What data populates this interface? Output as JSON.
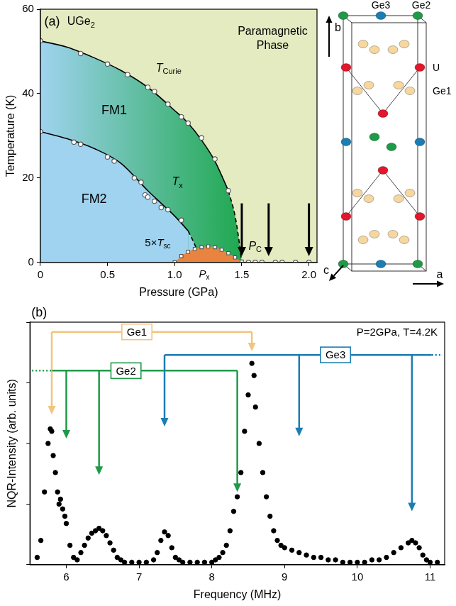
{
  "chart_data": [
    {
      "type": "line",
      "x_label": "Pressure (GPa)",
      "y_label": "Temperature (K)",
      "xlim": [
        0,
        2.06
      ],
      "xticks": [
        0,
        0.5,
        {
          "value": 1,
          "label": "1.0"
        },
        1.5,
        {
          "value": 2,
          "label": "2.0"
        }
      ],
      "ylim": [
        0,
        60
      ],
      "yticks": [
        0,
        20,
        40,
        60
      ],
      "grid": false,
      "series": [
        {
          "type": "area",
          "marker": "square",
          "color": "#e8843f",
          "x": [
            1.0,
            1.05,
            1.1,
            1.15,
            1.2,
            1.25,
            1.3,
            1.35,
            1.4,
            1.45,
            1.5
          ],
          "values": [
            0,
            1.5,
            2.5,
            3.2,
            3.6,
            3.8,
            3.6,
            3.0,
            2.2,
            1.2,
            0.2
          ]
        },
        {
          "type": "area",
          "line_style": "dashed",
          "marker": "none",
          "color": "#9fd3ef",
          "x": [
            1.1,
            1.15,
            1.2
          ],
          "values": [
            7.5,
            4.2,
            0
          ]
        },
        {
          "type": "area",
          "line_style": "solid",
          "marker": "none",
          "color": "#9fd3ef",
          "x": [
            0,
            0.2,
            0.4,
            0.6,
            0.8,
            0.9,
            1.0,
            1.1
          ],
          "values": [
            31,
            29.3,
            27,
            23.5,
            17,
            14,
            11,
            7.5
          ]
        },
        {
          "type": "scatter",
          "marker": "circle",
          "color": "#555555",
          "x": [
            0,
            0.25,
            0.3,
            0.5,
            0.55,
            0.7,
            0.75,
            0.78,
            0.8,
            0.85,
            0.9,
            0.95,
            1.05
          ],
          "values": [
            31,
            28.5,
            28,
            25,
            24,
            20,
            19,
            16,
            15.5,
            14.5,
            13,
            12.5,
            10
          ]
        },
        {
          "type": "area",
          "line_style": "dashed",
          "marker": "none",
          "color": "#1fa84f",
          "x": [
            1.4,
            1.45,
            1.48,
            1.5
          ],
          "values": [
            17,
            11,
            5,
            0
          ]
        },
        {
          "type": "area",
          "line_style": "solid",
          "marker": "none",
          "color": "#1fa84f",
          "x": [
            0,
            0.2,
            0.4,
            0.6,
            0.8,
            1.0,
            1.1,
            1.2,
            1.3,
            1.4
          ],
          "values": [
            52.5,
            51,
            48.5,
            45.5,
            41.5,
            36,
            33,
            29,
            24,
            17
          ]
        },
        {
          "type": "scatter",
          "marker": "circle",
          "color": "#555555",
          "x": [
            0,
            0.3,
            0.5,
            0.65,
            0.8,
            0.85,
            0.95,
            1.05,
            1.1,
            1.2,
            1.3,
            1.4
          ],
          "values": [
            52.5,
            49.5,
            47,
            44.5,
            41.5,
            40.5,
            37.5,
            34.5,
            33,
            29.5,
            24.5,
            17
          ]
        },
        {
          "type": "scatter",
          "marker": "circle",
          "color": "#555555",
          "x": [
            1.55,
            1.6,
            1.65,
            1.75,
            1.8,
            1.9,
            2.0
          ],
          "values": [
            0,
            0,
            0,
            0,
            0,
            0,
            0
          ]
        }
      ],
      "arrows": {
        "x": [
          1.5,
          1.7,
          2.0
        ],
        "from": 14,
        "to": 1.5
      },
      "annotations": [
        {
          "text": "(a)"
        },
        {
          "text": "UGe",
          "sub": "2"
        },
        {
          "text": "Paramagnetic Phase"
        },
        {
          "text": "FM1"
        },
        {
          "text": "FM2"
        },
        {
          "text": "T",
          "sub": "Curie"
        },
        {
          "text": "T",
          "sub": "x"
        },
        {
          "text": "5×T",
          "sub": "sc"
        },
        {
          "text": "P",
          "sub": "x"
        },
        {
          "text": "P",
          "sub": "C"
        }
      ]
    },
    {
      "type": "scatter",
      "x_label": "Frequency (MHz)",
      "y_label": "NQR-Intensity (arb. units)",
      "xlim": [
        5.5,
        11.2
      ],
      "xticks": [
        6,
        7,
        8,
        9,
        10,
        11
      ],
      "ylim": [
        0,
        1
      ],
      "yticks": [
        0,
        0.25,
        0.5,
        0.75,
        1
      ],
      "tick_labels": "x",
      "grid": false,
      "series": [
        {
          "type": "scatter",
          "marker": "circle",
          "color": "#000000",
          "x": [
            5.6,
            5.65,
            5.7,
            5.75,
            5.78,
            5.8,
            5.82,
            5.85,
            5.88,
            5.9,
            5.92,
            5.95,
            5.98,
            6.0,
            6.05,
            6.1,
            6.15,
            6.2,
            6.25,
            6.3,
            6.35,
            6.4,
            6.45,
            6.5,
            6.55,
            6.6,
            6.65,
            6.7,
            6.75,
            6.8,
            6.9,
            7.0,
            7.1,
            7.2,
            7.25,
            7.3,
            7.35,
            7.4,
            7.45,
            7.5,
            7.55,
            7.6,
            7.7,
            7.8,
            7.9,
            8.0,
            8.05,
            8.1,
            8.15,
            8.2,
            8.25,
            8.3,
            8.35,
            8.4,
            8.45,
            8.5,
            8.55,
            8.58,
            8.6,
            8.65,
            8.7,
            8.75,
            8.8,
            8.85,
            8.9,
            8.95,
            9.0,
            9.1,
            9.2,
            9.3,
            9.4,
            9.5,
            9.6,
            9.7,
            9.8,
            9.9,
            10.0,
            10.1,
            10.2,
            10.3,
            10.4,
            10.5,
            10.6,
            10.7,
            10.75,
            10.8,
            10.85,
            10.9,
            10.95,
            11.0,
            11.1
          ],
          "values": [
            0.03,
            0.1,
            0.3,
            0.5,
            0.56,
            0.55,
            0.45,
            0.38,
            0.3,
            0.25,
            0.27,
            0.23,
            0.2,
            0.17,
            0.08,
            0.03,
            0.02,
            0.05,
            0.08,
            0.11,
            0.13,
            0.14,
            0.15,
            0.14,
            0.12,
            0.09,
            0.06,
            0.03,
            0.02,
            0.01,
            0.01,
            0.01,
            0.01,
            0.02,
            0.05,
            0.1,
            0.135,
            0.12,
            0.07,
            0.03,
            0.02,
            0.01,
            0.01,
            0.01,
            0.01,
            0.01,
            0.02,
            0.03,
            0.05,
            0.08,
            0.14,
            0.22,
            0.28,
            0.38,
            0.55,
            0.7,
            0.83,
            0.78,
            0.65,
            0.5,
            0.38,
            0.28,
            0.2,
            0.14,
            0.1,
            0.08,
            0.07,
            0.06,
            0.05,
            0.04,
            0.03,
            0.03,
            0.02,
            0.02,
            0.01,
            0.01,
            0.01,
            0.01,
            0.02,
            0.02,
            0.03,
            0.05,
            0.07,
            0.09,
            0.1,
            0.09,
            0.07,
            0.04,
            0.02,
            0.01,
            0.01
          ]
        }
      ],
      "brackets": [
        {
          "label": "Ge1",
          "color": "#f2c47d",
          "x": [
            5.8,
            8.55
          ]
        },
        {
          "label": "Ge2",
          "color": "#1f9a48",
          "x": [
            6.0,
            6.45,
            8.35
          ]
        },
        {
          "label": "Ge3",
          "color": "#1b7db3",
          "x": [
            7.35,
            9.2,
            10.75
          ]
        }
      ],
      "annotations": [
        {
          "text": "(b)"
        },
        {
          "text": "P=2GPa, T=4.2K"
        }
      ]
    }
  ],
  "crystal_structure": {
    "atoms": [
      {
        "label": "U",
        "color": "#e3162b"
      },
      {
        "label": "Ge1",
        "color": "#f6d7a0"
      },
      {
        "label": "Ge2",
        "color": "#1f9a48"
      },
      {
        "label": "Ge3",
        "color": "#1b7db3"
      }
    ],
    "axes": [
      "b",
      "a",
      "c"
    ]
  }
}
